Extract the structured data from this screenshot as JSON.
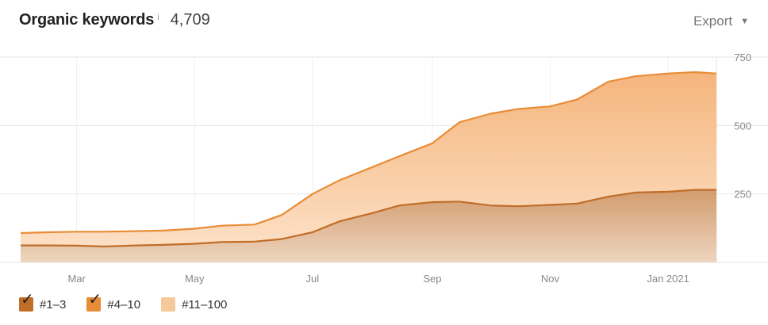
{
  "header": {
    "title": "Organic keywords",
    "info_glyph": "i",
    "count": "4,709",
    "export_label": "Export",
    "export_icon": "caret-down-icon"
  },
  "legend": [
    {
      "label": "#1–3",
      "color": "#c06d28",
      "checked": true
    },
    {
      "label": "#4–10",
      "color": "#e98c37",
      "checked": true
    },
    {
      "label": "#11–100",
      "color": "#f6c99a",
      "checked": false
    }
  ],
  "chart_data": {
    "type": "area",
    "stacked": true,
    "x_tick_labels": [
      "Mar",
      "May",
      "Jul",
      "Sep",
      "Nov",
      "Jan 2021"
    ],
    "y_tick_labels": [
      "250",
      "500",
      "750"
    ],
    "ylim": [
      0,
      750
    ],
    "grid": true,
    "legend_position": "bottom-left",
    "x": [
      "2020-02-01",
      "2020-02-15",
      "2020-03-01",
      "2020-03-15",
      "2020-04-01",
      "2020-04-15",
      "2020-05-01",
      "2020-05-15",
      "2020-06-01",
      "2020-06-15",
      "2020-07-01",
      "2020-07-15",
      "2020-08-01",
      "2020-08-15",
      "2020-09-01",
      "2020-09-15",
      "2020-10-01",
      "2020-10-15",
      "2020-11-01",
      "2020-11-15",
      "2020-12-01",
      "2020-12-15",
      "2021-01-01",
      "2021-01-15",
      "2021-01-26"
    ],
    "series": [
      {
        "name": "#1–3",
        "color": "#c06d28",
        "values": [
          62,
          62,
          61,
          58,
          62,
          64,
          68,
          74,
          76,
          85,
          110,
          150,
          180,
          208,
          220,
          222,
          208,
          205,
          210,
          215,
          240,
          255,
          258,
          265,
          265
        ]
      },
      {
        "name": "#4–10",
        "color": "#e98c37",
        "values": [
          45,
          48,
          51,
          54,
          52,
          52,
          55,
          60,
          62,
          88,
          140,
          150,
          168,
          180,
          215,
          290,
          335,
          355,
          360,
          380,
          420,
          425,
          432,
          430,
          425
        ]
      }
    ],
    "totals": [
      107,
      110,
      112,
      112,
      114,
      116,
      123,
      134,
      138,
      173,
      250,
      300,
      348,
      388,
      435,
      512,
      543,
      560,
      570,
      595,
      660,
      680,
      690,
      695,
      690
    ]
  }
}
